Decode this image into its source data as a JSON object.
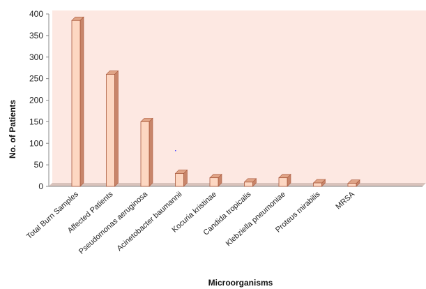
{
  "chart_data": {
    "type": "bar",
    "title": "",
    "xlabel": "Microorganisms",
    "ylabel": "No. of Patients",
    "ylim": [
      0,
      400
    ],
    "yticks": [
      0,
      50,
      100,
      150,
      200,
      250,
      300,
      350,
      400
    ],
    "grid": false,
    "categories": [
      "Total Burn Samples",
      "Affected Patients",
      "Pseudomonas aeruginosa",
      "Acinetobacter baumannii",
      "Kocuria kristinae",
      "Candida tropicalis",
      "Klebziella pneumoniae",
      "Proteus mirabilis",
      "MRSA"
    ],
    "values": [
      385,
      260,
      150,
      30,
      20,
      10,
      20,
      8,
      7
    ],
    "colors": {
      "plot_bg": "#fde8e2",
      "bar_front": "#fdd7c2",
      "bar_side": "#c8856a",
      "bar_top": "#e0a487",
      "bar_edge": "#a9593c",
      "axis": "#888888"
    }
  }
}
